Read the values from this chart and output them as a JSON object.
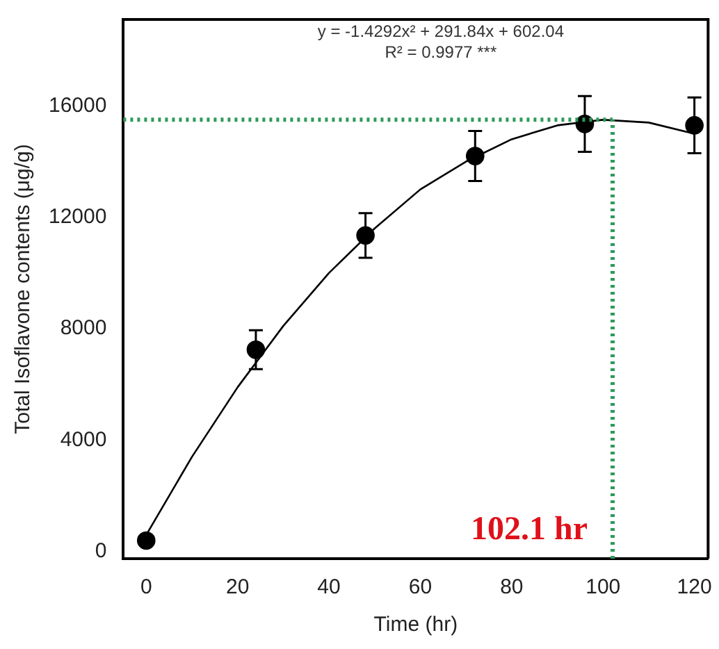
{
  "chart_data": {
    "type": "scatter",
    "xlabel": "Time (hr)",
    "ylabel": "Total Isoflavone contents (μg/g)",
    "xlim": [
      -5,
      123
    ],
    "xticks": [
      0,
      20,
      40,
      60,
      80,
      100,
      120
    ],
    "ylim": [
      -250,
      19100
    ],
    "yticks": [
      0,
      4000,
      8000,
      12000,
      16000
    ],
    "grid": false,
    "legend": false,
    "marker": "circle",
    "series": [
      {
        "color": "#000000",
        "x": [
          0,
          24,
          48,
          72,
          96,
          120
        ],
        "values": [
          400,
          7250,
          11350,
          14200,
          15350,
          15300
        ],
        "errors": [
          null,
          700,
          800,
          900,
          1000,
          1000
        ]
      },
      {
        "type": "line",
        "color": "#000000",
        "x": [
          0,
          10,
          20,
          30,
          40,
          50,
          60,
          70,
          80,
          90,
          100,
          110,
          120
        ],
        "values": [
          600,
          3400,
          5900,
          8100,
          10000,
          11600,
          13000,
          14000,
          14800,
          15300,
          15500,
          15400,
          15000
        ],
        "marker": "none",
        "line_style": "solid"
      }
    ],
    "ref_lines": [
      {
        "axis": "y",
        "value": 15500,
        "color": "#2e9a5a",
        "line_style": "dotted"
      },
      {
        "axis": "x",
        "value": 102.1,
        "label": "102.1 hr",
        "color": "#2e9a5a",
        "line_style": "dotted"
      }
    ],
    "annotations": [
      "y = -1.4292x² + 291.84x + 602.04",
      "R² = 0.9977 ***"
    ]
  }
}
